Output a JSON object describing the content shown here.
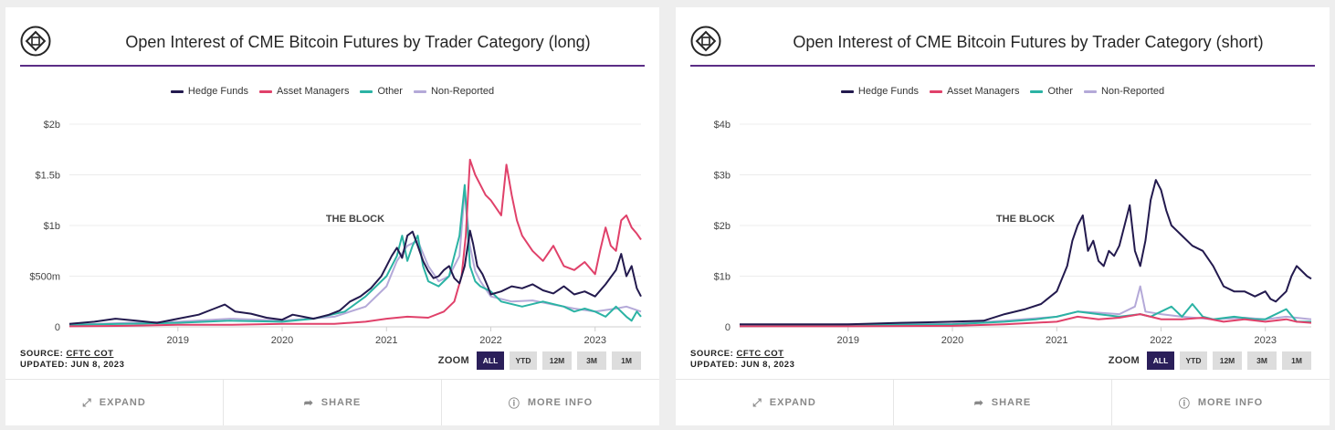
{
  "colors": {
    "hedge": "#231a4e",
    "asset": "#e0416a",
    "other": "#2bb3a4",
    "nonrep": "#b4a9d8",
    "accent": "#5b2d86",
    "active_zoom": "#2b1f5a"
  },
  "watermark": "THE BLOCK",
  "cards": [
    {
      "title": "Open Interest of CME Bitcoin Futures by Trader Category (long)",
      "source_label": "SOURCE:",
      "source_link": "CFTC COT",
      "updated": "UPDATED: JUN 8, 2023",
      "zoom_label": "ZOOM",
      "zoom_buttons": [
        "ALL",
        "YTD",
        "12M",
        "3M",
        "1M"
      ],
      "footer": {
        "expand": "EXPAND",
        "share": "SHARE",
        "more_info": "MORE INFO"
      }
    },
    {
      "title": "Open Interest of CME Bitcoin Futures by Trader Category (short)",
      "source_label": "SOURCE:",
      "source_link": "CFTC COT",
      "updated": "UPDATED: JUN 8, 2023",
      "zoom_label": "ZOOM",
      "zoom_buttons": [
        "ALL",
        "YTD",
        "12M",
        "3M",
        "1M"
      ],
      "footer": {
        "expand": "EXPAND",
        "share": "SHARE",
        "more_info": "MORE INFO"
      }
    }
  ],
  "chart_data": [
    {
      "type": "line",
      "title": "Open Interest of CME Bitcoin Futures by Trader Category (long)",
      "ylim": [
        0,
        2000000000
      ],
      "yticks": [
        0,
        500000000,
        1000000000,
        1500000000,
        2000000000
      ],
      "ytick_labels": [
        "0",
        "$500m",
        "$1b",
        "$1.5b",
        "$2b"
      ],
      "xlim": [
        2017.96,
        2023.44
      ],
      "xticks": [
        2019,
        2020,
        2021,
        2022,
        2023
      ],
      "xtick_labels": [
        "2019",
        "2020",
        "2021",
        "2022",
        "2023"
      ],
      "grid": true,
      "legend_position": "top-center",
      "series": [
        {
          "name": "Hedge Funds",
          "color_key": "hedge",
          "x": [
            2017.96,
            2018.2,
            2018.4,
            2018.6,
            2018.8,
            2019.0,
            2019.2,
            2019.35,
            2019.45,
            2019.55,
            2019.7,
            2019.85,
            2020.0,
            2020.1,
            2020.2,
            2020.3,
            2020.45,
            2020.55,
            2020.65,
            2020.75,
            2020.85,
            2020.95,
            2021.0,
            2021.05,
            2021.1,
            2021.15,
            2021.2,
            2021.25,
            2021.3,
            2021.35,
            2021.4,
            2021.45,
            2021.5,
            2021.55,
            2021.6,
            2021.65,
            2021.7,
            2021.75,
            2021.8,
            2021.83,
            2021.87,
            2021.92,
            2021.97,
            2022.0,
            2022.1,
            2022.2,
            2022.3,
            2022.4,
            2022.5,
            2022.6,
            2022.7,
            2022.8,
            2022.9,
            2023.0,
            2023.1,
            2023.2,
            2023.25,
            2023.3,
            2023.35,
            2023.4,
            2023.44
          ],
          "y": [
            30000000,
            50000000,
            80000000,
            60000000,
            40000000,
            80000000,
            120000000,
            180000000,
            220000000,
            150000000,
            130000000,
            90000000,
            70000000,
            120000000,
            100000000,
            80000000,
            120000000,
            160000000,
            250000000,
            300000000,
            380000000,
            500000000,
            600000000,
            700000000,
            780000000,
            680000000,
            900000000,
            940000000,
            800000000,
            650000000,
            550000000,
            480000000,
            500000000,
            560000000,
            600000000,
            480000000,
            430000000,
            600000000,
            950000000,
            820000000,
            600000000,
            520000000,
            400000000,
            320000000,
            350000000,
            400000000,
            380000000,
            420000000,
            360000000,
            330000000,
            400000000,
            320000000,
            350000000,
            300000000,
            420000000,
            560000000,
            720000000,
            500000000,
            600000000,
            380000000,
            300000000
          ]
        },
        {
          "name": "Asset Managers",
          "color_key": "asset",
          "x": [
            2017.96,
            2018.5,
            2019.0,
            2019.5,
            2020.0,
            2020.5,
            2020.8,
            2021.0,
            2021.2,
            2021.4,
            2021.55,
            2021.65,
            2021.72,
            2021.76,
            2021.8,
            2021.85,
            2021.9,
            2021.95,
            2022.0,
            2022.1,
            2022.15,
            2022.2,
            2022.25,
            2022.3,
            2022.4,
            2022.5,
            2022.6,
            2022.7,
            2022.8,
            2022.9,
            2023.0,
            2023.05,
            2023.1,
            2023.15,
            2023.2,
            2023.25,
            2023.3,
            2023.35,
            2023.4,
            2023.44
          ],
          "y": [
            5000000,
            10000000,
            20000000,
            20000000,
            30000000,
            30000000,
            50000000,
            80000000,
            100000000,
            90000000,
            150000000,
            250000000,
            500000000,
            900000000,
            1650000000,
            1500000000,
            1400000000,
            1300000000,
            1250000000,
            1100000000,
            1600000000,
            1300000000,
            1050000000,
            900000000,
            750000000,
            650000000,
            800000000,
            600000000,
            560000000,
            640000000,
            520000000,
            760000000,
            980000000,
            800000000,
            750000000,
            1050000000,
            1100000000,
            980000000,
            920000000,
            860000000
          ]
        },
        {
          "name": "Other",
          "color_key": "other",
          "x": [
            2017.96,
            2018.5,
            2019.0,
            2019.5,
            2020.0,
            2020.3,
            2020.6,
            2020.8,
            2021.0,
            2021.1,
            2021.15,
            2021.2,
            2021.25,
            2021.3,
            2021.35,
            2021.4,
            2021.5,
            2021.6,
            2021.7,
            2021.75,
            2021.8,
            2021.85,
            2021.9,
            2022.0,
            2022.1,
            2022.3,
            2022.5,
            2022.7,
            2022.8,
            2022.9,
            2023.0,
            2023.1,
            2023.2,
            2023.3,
            2023.35,
            2023.4,
            2023.44
          ],
          "y": [
            20000000,
            30000000,
            40000000,
            60000000,
            50000000,
            80000000,
            150000000,
            300000000,
            500000000,
            700000000,
            900000000,
            650000000,
            800000000,
            900000000,
            600000000,
            450000000,
            400000000,
            500000000,
            900000000,
            1400000000,
            600000000,
            450000000,
            400000000,
            350000000,
            250000000,
            200000000,
            250000000,
            200000000,
            150000000,
            180000000,
            150000000,
            100000000,
            200000000,
            100000000,
            60000000,
            150000000,
            100000000
          ]
        },
        {
          "name": "Non-Reported",
          "color_key": "nonrep",
          "x": [
            2017.96,
            2018.5,
            2019.0,
            2019.5,
            2020.0,
            2020.5,
            2020.8,
            2021.0,
            2021.1,
            2021.2,
            2021.3,
            2021.4,
            2021.5,
            2021.6,
            2021.7,
            2021.75,
            2021.8,
            2021.85,
            2021.9,
            2022.0,
            2022.2,
            2022.4,
            2022.6,
            2022.8,
            2023.0,
            2023.2,
            2023.3,
            2023.44
          ],
          "y": [
            20000000,
            40000000,
            50000000,
            80000000,
            60000000,
            100000000,
            200000000,
            400000000,
            650000000,
            800000000,
            850000000,
            600000000,
            450000000,
            500000000,
            700000000,
            1350000000,
            800000000,
            550000000,
            450000000,
            300000000,
            250000000,
            260000000,
            220000000,
            180000000,
            150000000,
            180000000,
            200000000,
            150000000
          ]
        }
      ]
    },
    {
      "type": "line",
      "title": "Open Interest of CME Bitcoin Futures by Trader Category (short)",
      "ylim": [
        0,
        4000000000
      ],
      "yticks": [
        0,
        1000000000,
        2000000000,
        3000000000,
        4000000000
      ],
      "ytick_labels": [
        "0",
        "$1b",
        "$2b",
        "$3b",
        "$4b"
      ],
      "xlim": [
        2017.96,
        2023.44
      ],
      "xticks": [
        2019,
        2020,
        2021,
        2022,
        2023
      ],
      "xtick_labels": [
        "2019",
        "2020",
        "2021",
        "2022",
        "2023"
      ],
      "grid": true,
      "legend_position": "top-center",
      "series": [
        {
          "name": "Hedge Funds",
          "color_key": "hedge",
          "x": [
            2017.96,
            2018.5,
            2019.0,
            2019.5,
            2020.0,
            2020.3,
            2020.5,
            2020.7,
            2020.85,
            2021.0,
            2021.1,
            2021.15,
            2021.2,
            2021.25,
            2021.3,
            2021.35,
            2021.4,
            2021.45,
            2021.5,
            2021.55,
            2021.6,
            2021.65,
            2021.7,
            2021.75,
            2021.8,
            2021.85,
            2021.9,
            2021.95,
            2022.0,
            2022.05,
            2022.1,
            2022.2,
            2022.3,
            2022.4,
            2022.5,
            2022.6,
            2022.7,
            2022.8,
            2022.9,
            2023.0,
            2023.05,
            2023.1,
            2023.15,
            2023.2,
            2023.25,
            2023.3,
            2023.35,
            2023.4,
            2023.44
          ],
          "y": [
            50000000,
            50000000,
            50000000,
            80000000,
            100000000,
            120000000,
            250000000,
            350000000,
            450000000,
            700000000,
            1200000000,
            1700000000,
            2000000000,
            2200000000,
            1500000000,
            1700000000,
            1300000000,
            1200000000,
            1500000000,
            1400000000,
            1600000000,
            2000000000,
            2400000000,
            1500000000,
            1200000000,
            1700000000,
            2500000000,
            2900000000,
            2700000000,
            2300000000,
            2000000000,
            1800000000,
            1600000000,
            1500000000,
            1200000000,
            800000000,
            700000000,
            700000000,
            600000000,
            700000000,
            550000000,
            500000000,
            600000000,
            700000000,
            1000000000,
            1200000000,
            1100000000,
            1000000000,
            950000000
          ]
        },
        {
          "name": "Asset Managers",
          "color_key": "asset",
          "x": [
            2017.96,
            2019.0,
            2020.0,
            2020.5,
            2021.0,
            2021.2,
            2021.4,
            2021.6,
            2021.8,
            2022.0,
            2022.2,
            2022.4,
            2022.6,
            2022.8,
            2023.0,
            2023.2,
            2023.3,
            2023.44
          ],
          "y": [
            10000000,
            10000000,
            20000000,
            50000000,
            100000000,
            200000000,
            150000000,
            180000000,
            250000000,
            150000000,
            150000000,
            180000000,
            100000000,
            150000000,
            100000000,
            150000000,
            100000000,
            80000000
          ]
        },
        {
          "name": "Other",
          "color_key": "other",
          "x": [
            2017.96,
            2019.0,
            2020.0,
            2020.5,
            2020.8,
            2021.0,
            2021.2,
            2021.4,
            2021.6,
            2021.8,
            2021.9,
            2022.0,
            2022.1,
            2022.2,
            2022.3,
            2022.4,
            2022.5,
            2022.7,
            2022.9,
            2023.0,
            2023.2,
            2023.3,
            2023.44
          ],
          "y": [
            10000000,
            30000000,
            50000000,
            100000000,
            150000000,
            200000000,
            300000000,
            250000000,
            200000000,
            250000000,
            200000000,
            300000000,
            400000000,
            200000000,
            450000000,
            200000000,
            150000000,
            200000000,
            150000000,
            150000000,
            350000000,
            100000000,
            100000000
          ]
        },
        {
          "name": "Non-Reported",
          "color_key": "nonrep",
          "x": [
            2017.96,
            2019.0,
            2020.0,
            2020.5,
            2021.0,
            2021.2,
            2021.4,
            2021.6,
            2021.75,
            2021.8,
            2021.85,
            2022.0,
            2022.2,
            2022.5,
            2022.8,
            2023.0,
            2023.2,
            2023.44
          ],
          "y": [
            20000000,
            50000000,
            60000000,
            120000000,
            200000000,
            300000000,
            280000000,
            250000000,
            400000000,
            800000000,
            300000000,
            250000000,
            200000000,
            150000000,
            180000000,
            150000000,
            200000000,
            150000000
          ]
        }
      ]
    }
  ]
}
